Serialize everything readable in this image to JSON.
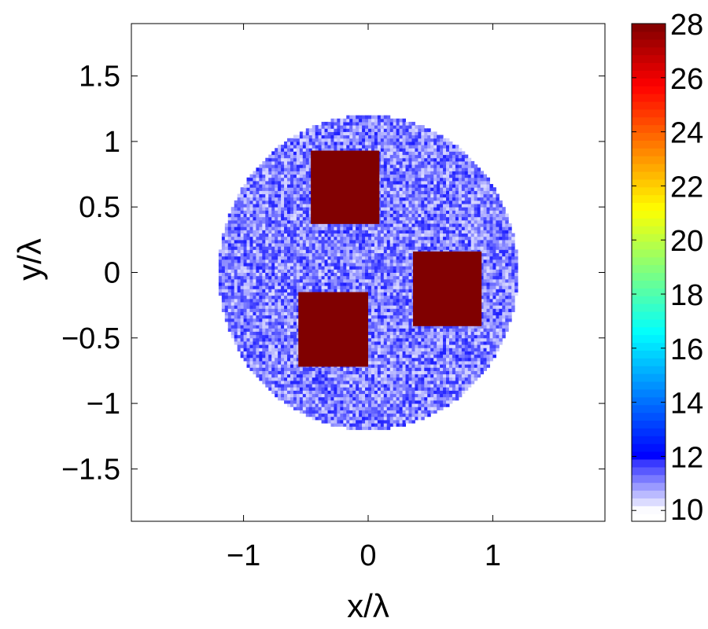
{
  "chart_data": {
    "type": "heatmap",
    "title": "",
    "xlabel": "x/λ",
    "ylabel": "y/λ",
    "xlim": [
      -1.9,
      1.9
    ],
    "ylim": [
      -1.9,
      1.9
    ],
    "xticks": [
      -1,
      0,
      1
    ],
    "xtick_labels": [
      "−1",
      "0",
      "1"
    ],
    "yticks": [
      -1.5,
      -1,
      -0.5,
      0,
      0.5,
      1,
      1.5
    ],
    "ytick_labels": [
      "−1.5",
      "−1",
      "−0.5",
      "0",
      "0.5",
      "1",
      "1.5"
    ],
    "grid": false,
    "colorbar": {
      "clim": [
        9.6,
        28
      ],
      "ticks": [
        10,
        12,
        14,
        16,
        18,
        20,
        22,
        24,
        26,
        28
      ],
      "tick_labels": [
        "10",
        "12",
        "14",
        "16",
        "18",
        "20",
        "22",
        "24",
        "26",
        "28"
      ],
      "colormap": "white-blue below 12, jet above"
    },
    "background_disk": {
      "center": [
        0,
        0
      ],
      "radius": 1.2,
      "value_range": [
        10,
        12
      ],
      "cell_size": 0.025
    },
    "squares": [
      {
        "x": [
          -0.46,
          0.09
        ],
        "y": [
          0.37,
          0.93
        ],
        "value": 28
      },
      {
        "x": [
          0.36,
          0.91
        ],
        "y": [
          -0.41,
          0.16
        ],
        "value": 28
      },
      {
        "x": [
          -0.56,
          0.0
        ],
        "y": [
          -0.72,
          -0.15
        ],
        "value": 28
      }
    ]
  }
}
